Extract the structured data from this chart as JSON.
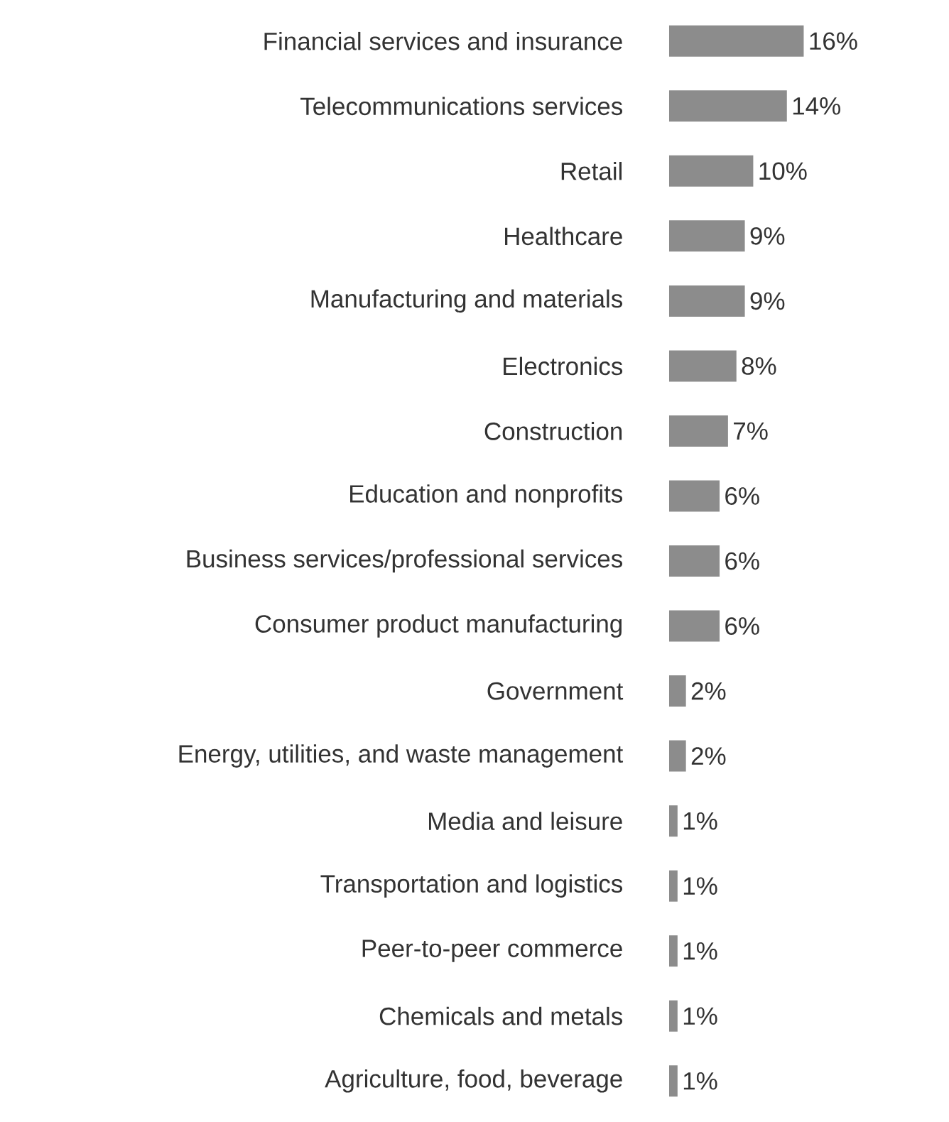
{
  "chart_data": {
    "type": "bar",
    "orientation": "horizontal",
    "tick_labels": "y",
    "color": "#8c8c8c",
    "categories": [
      "Financial services and insurance",
      "Telecommunications services",
      "Retail",
      "Healthcare",
      "Manufacturing and materials",
      "Electronics",
      "Construction",
      "Education and nonprofits",
      "Business services/professional services",
      "Consumer product manufacturing",
      "Government",
      "Energy, utilities, and waste management",
      "Media and leisure",
      "Transportation and logistics",
      "Peer-to-peer commerce",
      "Chemicals and metals",
      "Agriculture, food, beverage"
    ],
    "values": [
      16,
      14,
      10,
      9,
      9,
      8,
      7,
      6,
      6,
      6,
      2,
      2,
      1,
      1,
      1,
      1,
      1
    ],
    "value_labels": [
      "16%",
      "14%",
      "10%",
      "9%",
      "9%",
      "8%",
      "7%",
      "6%",
      "6%",
      "6%",
      "2%",
      "2%",
      "1%",
      "1%",
      "1%",
      "1%",
      "1%"
    ]
  }
}
